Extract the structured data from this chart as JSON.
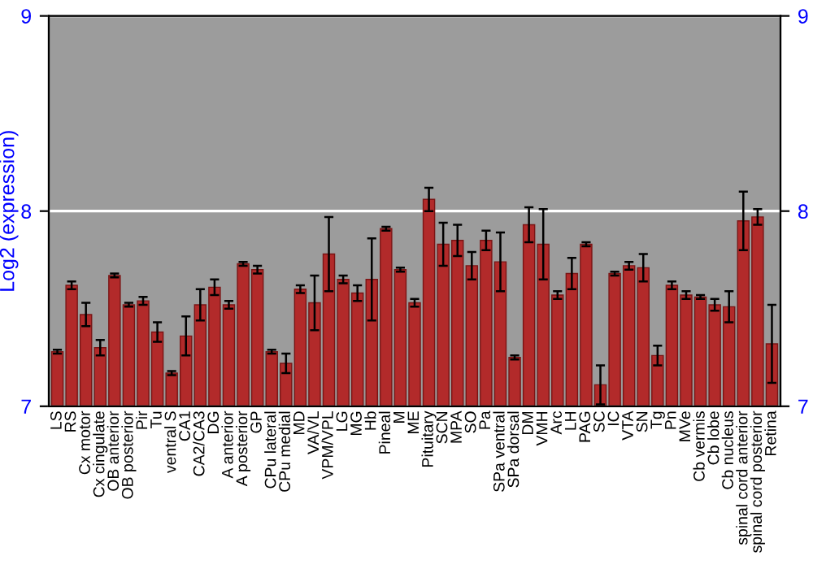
{
  "chart_data": {
    "type": "bar",
    "ylabel": "Log2 (expression)",
    "categories": [
      "LS",
      "RS",
      "Cx motor",
      "Cx cingulate",
      "OB anterior",
      "OB posterior",
      "Pir",
      "Tu",
      "ventral S",
      "CA1",
      "CA2/CA3",
      "DG",
      "A anterior",
      "A posterior",
      "GP",
      "CPu lateral",
      "CPu medial",
      "MD",
      "VA/VL",
      "VPM/VPL",
      "LG",
      "MG",
      "Hb",
      "Pineal",
      "M",
      "ME",
      "Pituitary",
      "SCN",
      "MPA",
      "SO",
      "Pa",
      "SPa ventral",
      "SPa dorsal",
      "DM",
      "VMH",
      "Arc",
      "LH",
      "PAG",
      "SC",
      "IC",
      "VTA",
      "SN",
      "Tg",
      "Pn",
      "MVe",
      "Cb vermis",
      "Cb lobe",
      "Cb nucleus",
      "spinal cord anterior",
      "spinal cord posterior",
      "Retina"
    ],
    "values": [
      7.28,
      7.62,
      7.47,
      7.3,
      7.67,
      7.52,
      7.54,
      7.38,
      7.17,
      7.36,
      7.52,
      7.61,
      7.52,
      7.73,
      7.7,
      7.28,
      7.22,
      7.6,
      7.53,
      7.78,
      7.65,
      7.58,
      7.65,
      7.91,
      7.7,
      7.53,
      8.06,
      7.83,
      7.85,
      7.72,
      7.85,
      7.74,
      7.25,
      7.93,
      7.83,
      7.57,
      7.68,
      7.83,
      7.11,
      7.68,
      7.72,
      7.71,
      7.26,
      7.62,
      7.57,
      7.56,
      7.52,
      7.51,
      7.95,
      7.97,
      7.32
    ],
    "errors": [
      0.01,
      0.02,
      0.06,
      0.04,
      0.01,
      0.01,
      0.02,
      0.05,
      0.01,
      0.1,
      0.08,
      0.04,
      0.02,
      0.01,
      0.02,
      0.01,
      0.05,
      0.02,
      0.14,
      0.19,
      0.02,
      0.04,
      0.21,
      0.01,
      0.01,
      0.02,
      0.06,
      0.11,
      0.08,
      0.07,
      0.05,
      0.15,
      0.01,
      0.09,
      0.18,
      0.02,
      0.08,
      0.01,
      0.1,
      0.01,
      0.02,
      0.07,
      0.05,
      0.02,
      0.02,
      0.01,
      0.03,
      0.08,
      0.15,
      0.04,
      0.2
    ],
    "color": "#b22a2a",
    "ylim": [
      7,
      9
    ],
    "yticks": [
      7,
      8,
      9
    ],
    "y2lim": [
      7,
      9
    ],
    "y2ticks": [
      7,
      8,
      9
    ],
    "grid": "y"
  }
}
